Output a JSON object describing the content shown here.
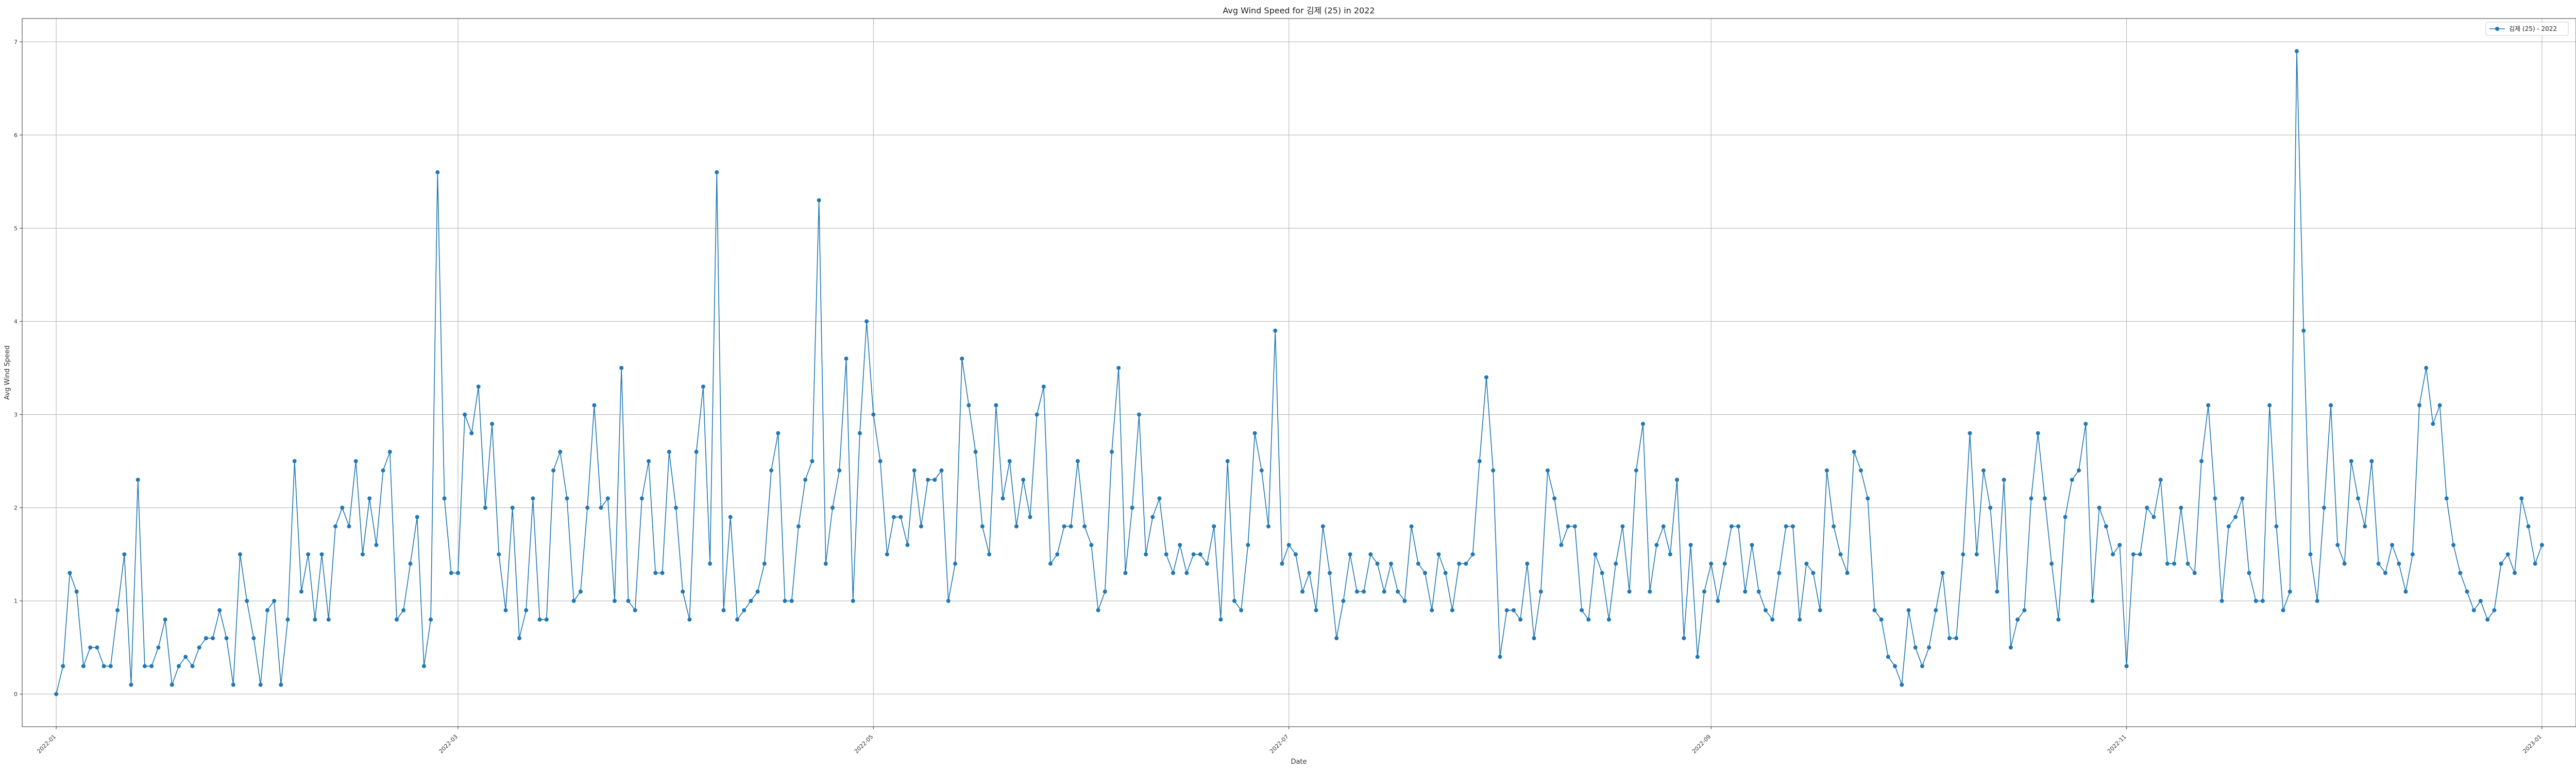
{
  "chart_data": {
    "type": "line",
    "title": "Avg Wind Speed for 김제 (25) in 2022",
    "xlabel": "Date",
    "ylabel": "Avg Wind Speed",
    "xlim": [
      "2022-01-01",
      "2023-01-01"
    ],
    "ylim": [
      -0.35,
      7.25
    ],
    "x_tick_labels": [
      "2022-01",
      "2022-03",
      "2022-05",
      "2022-07",
      "2022-09",
      "2022-11",
      "2023-01"
    ],
    "x_tick_dates": [
      "2022-01-01",
      "2022-03-01",
      "2022-05-01",
      "2022-07-01",
      "2022-09-01",
      "2022-11-01",
      "2023-01-01"
    ],
    "y_tick_labels": [
      "0",
      "1",
      "2",
      "3",
      "4",
      "5",
      "6",
      "7"
    ],
    "y_ticks": [
      0,
      1,
      2,
      3,
      4,
      5,
      6,
      7
    ],
    "grid": true,
    "legend": {
      "placement": "top-right",
      "entries": [
        "김제 (25) - 2022"
      ]
    },
    "series": [
      {
        "name": "김제 (25) - 2022",
        "color": "#1f77b4",
        "x_start": "2022-01-01",
        "values": [
          0,
          0.3,
          1.3,
          1.1,
          0.3,
          0.5,
          0.5,
          0.3,
          0.3,
          0.9,
          1.5,
          0.1,
          2.3,
          0.3,
          0.3,
          0.5,
          0.8,
          0.1,
          0.3,
          0.4,
          0.3,
          0.5,
          0.6,
          0.6,
          0.9,
          0.6,
          0.1,
          1.5,
          1,
          0.6,
          0.1,
          0.9,
          1,
          0.1,
          0.8,
          2.5,
          1.1,
          1.5,
          0.8,
          1.5,
          0.8,
          1.8,
          2,
          1.8,
          2.5,
          1.5,
          2.1,
          1.6,
          2.4,
          2.6,
          0.8,
          0.9,
          1.4,
          1.9,
          0.3,
          0.8,
          5.6,
          2.1,
          1.3,
          1.3,
          3,
          2.8,
          3.3,
          2,
          2.9,
          1.5,
          0.9,
          2,
          0.6,
          0.9,
          2.1,
          0.8,
          0.8,
          2.4,
          2.6,
          2.1,
          1,
          1.1,
          2,
          3.1,
          2,
          2.1,
          1,
          3.5,
          1,
          0.9,
          2.1,
          2.5,
          1.3,
          1.3,
          2.6,
          2,
          1.1,
          0.8,
          2.6,
          3.3,
          1.4,
          5.6,
          0.9,
          1.9,
          0.8,
          0.9,
          1,
          1.1,
          1.4,
          2.4,
          2.8,
          1,
          1,
          1.8,
          2.3,
          2.5,
          5.3,
          1.4,
          2,
          2.4,
          3.6,
          1,
          2.8,
          4,
          3,
          2.5,
          1.5,
          1.9,
          1.9,
          1.6,
          2.4,
          1.8,
          2.3,
          2.3,
          2.4,
          1,
          1.4,
          3.6,
          3.1,
          2.6,
          1.8,
          1.5,
          3.1,
          2.1,
          2.5,
          1.8,
          2.3,
          1.9,
          3,
          3.3,
          1.4,
          1.5,
          1.8,
          1.8,
          2.5,
          1.8,
          1.6,
          0.9,
          1.1,
          2.6,
          3.5,
          1.3,
          2,
          3,
          1.5,
          1.9,
          2.1,
          1.5,
          1.3,
          1.6,
          1.3,
          1.5,
          1.5,
          1.4,
          1.8,
          0.8,
          2.5,
          1,
          0.9,
          1.6,
          2.8,
          2.4,
          1.8,
          3.9,
          1.4,
          1.6,
          1.5,
          1.1,
          1.3,
          0.9,
          1.8,
          1.3,
          0.6,
          1,
          1.5,
          1.1,
          1.1,
          1.5,
          1.4,
          1.1,
          1.4,
          1.1,
          1,
          1.8,
          1.4,
          1.3,
          0.9,
          1.5,
          1.3,
          0.9,
          1.4,
          1.4,
          1.5,
          2.5,
          3.4,
          2.4,
          0.4,
          0.9,
          0.9,
          0.8,
          1.4,
          0.6,
          1.1,
          2.4,
          2.1,
          1.6,
          1.8,
          1.8,
          0.9,
          0.8,
          1.5,
          1.3,
          0.8,
          1.4,
          1.8,
          1.1,
          2.4,
          2.9,
          1.1,
          1.6,
          1.8,
          1.5,
          2.3,
          0.6,
          1.6,
          0.4,
          1.1,
          1.4,
          1,
          1.4,
          1.8,
          1.8,
          1.1,
          1.6,
          1.1,
          0.9,
          0.8,
          1.3,
          1.8,
          1.8,
          0.8,
          1.4,
          1.3,
          0.9,
          2.4,
          1.8,
          1.5,
          1.3,
          2.6,
          2.4,
          2.1,
          0.9,
          0.8,
          0.4,
          0.3,
          0.1,
          0.9,
          0.5,
          0.3,
          0.5,
          0.9,
          1.3,
          0.6,
          0.6,
          1.5,
          2.8,
          1.5,
          2.4,
          2,
          1.1,
          2.3,
          0.5,
          0.8,
          0.9,
          2.1,
          2.8,
          2.1,
          1.4,
          0.8,
          1.9,
          2.3,
          2.4,
          2.9,
          1,
          2,
          1.8,
          1.5,
          1.6,
          0.3,
          1.5,
          1.5,
          2,
          1.9,
          2.3,
          1.4,
          1.4,
          2,
          1.4,
          1.3,
          2.5,
          3.1,
          2.1,
          1,
          1.8,
          1.9,
          2.1,
          1.3,
          1,
          1,
          3.1,
          1.8,
          0.9,
          1.1,
          6.9,
          3.9,
          1.5,
          1,
          2,
          3.1,
          1.6,
          1.4,
          2.5,
          2.1,
          1.8,
          2.5,
          1.4,
          1.3,
          1.6,
          1.4,
          1.1,
          1.5,
          3.1,
          3.5,
          2.9,
          3.1,
          2.1,
          1.6,
          1.3,
          1.1,
          0.9,
          1,
          0.8,
          0.9,
          1.4,
          1.5,
          1.3,
          2.1,
          1.8,
          1.4,
          1.6
        ]
      }
    ]
  }
}
